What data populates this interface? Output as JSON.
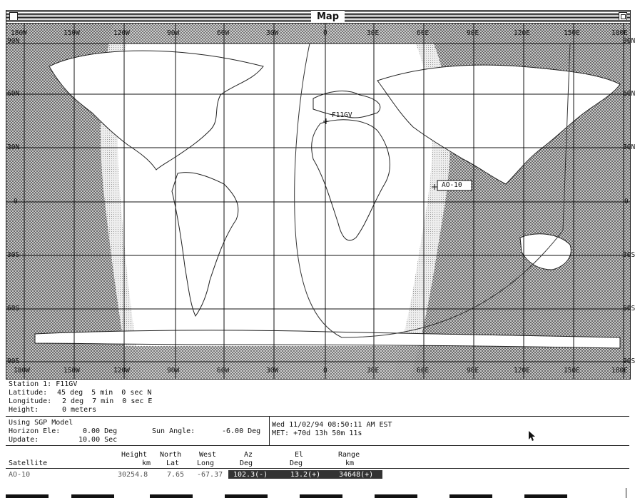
{
  "window": {
    "title": "Map"
  },
  "map": {
    "top_labels": [
      "180W",
      "150W",
      "120W",
      "90W",
      "60W",
      "30W",
      "0",
      "30E",
      "60E",
      "90E",
      "120E",
      "150E",
      "180E"
    ],
    "bottom_labels": [
      "180W",
      "150W",
      "120W",
      "90W",
      "60W",
      "30W",
      "0",
      "30E",
      "60E",
      "90E",
      "120E",
      "150E",
      "180E"
    ],
    "left_labels": [
      "90N",
      "60N",
      "30N",
      "0",
      "30S",
      "60S",
      "90S"
    ],
    "right_labels": [
      "90N",
      "60N",
      "30N",
      "0",
      "30S",
      "60S",
      "90S"
    ],
    "station_marker": "F11GV",
    "satellite_marker": "AO-10"
  },
  "station": {
    "name_label": "Station 1:",
    "name_value": "F11GV",
    "latitude_label": "Latitude:",
    "latitude_value": "45 deg  5 min  0 sec N",
    "longitude_label": "Longitude:",
    "longitude_value": "2 deg  7 min  0 sec E",
    "height_label": "Height:",
    "height_value": "0 meters"
  },
  "model": {
    "model_text": "Using SGP Model",
    "horizon_label": "Horizon Ele:",
    "horizon_value": "0.00 Deg",
    "sun_label": "Sun Angle:",
    "sun_value": "-6.00 Deg",
    "update_label": "Update:",
    "update_value": "10.00 Sec",
    "datetime": "Wed 11/02/94 08:50:11 AM EST",
    "met": "MET: +70d 13h 50m 11s"
  },
  "table": {
    "headers": [
      {
        "l1": "",
        "l2": "Satellite"
      },
      {
        "l1": "Height",
        "l2": "km"
      },
      {
        "l1": "North",
        "l2": "Lat"
      },
      {
        "l1": "West",
        "l2": "Long"
      },
      {
        "l1": "Az",
        "l2": "Deg"
      },
      {
        "l1": "El",
        "l2": "Deg"
      },
      {
        "l1": "Range",
        "l2": "km"
      }
    ],
    "row": {
      "satellite": "AO-10",
      "height": "30254.8",
      "lat": "7.65",
      "long": "-67.37",
      "az": "102.3(-)",
      "el": "13.2(+)",
      "range": "34648(+)"
    }
  }
}
